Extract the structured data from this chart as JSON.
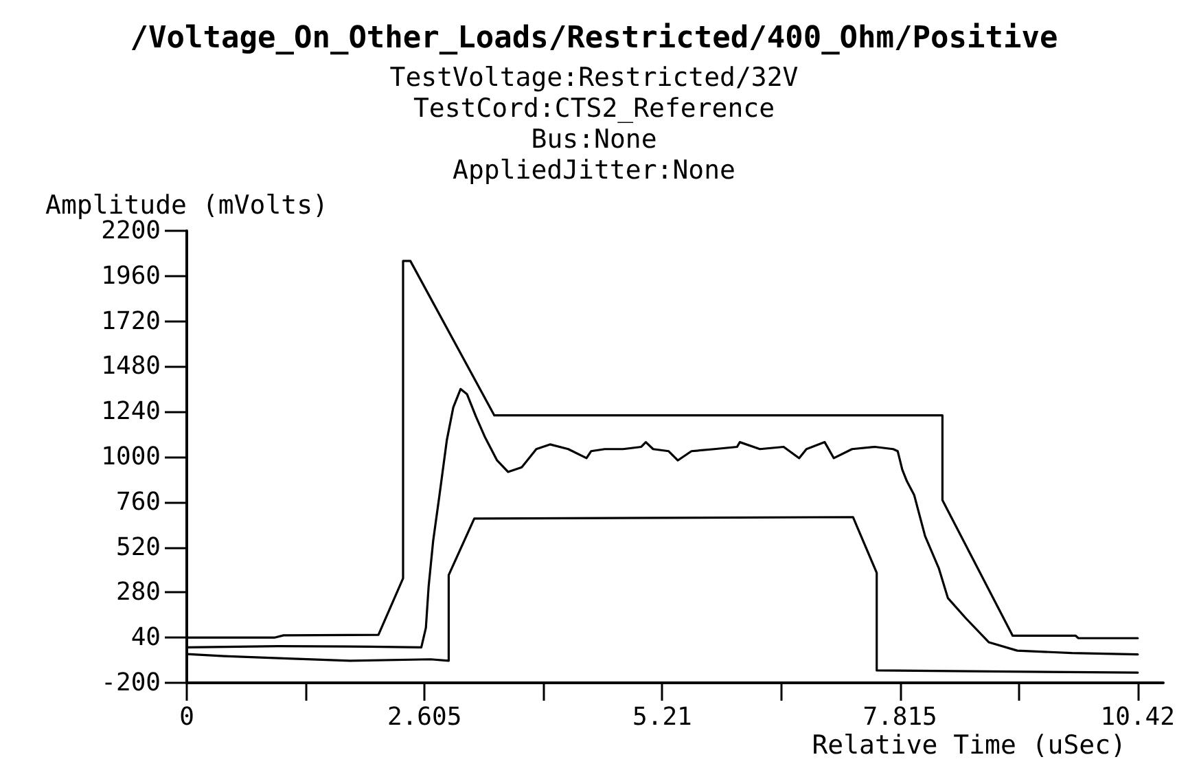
{
  "chart_data": {
    "type": "line",
    "title": "/Voltage_On_Other_Loads/Restricted/400_Ohm/Positive",
    "subtitle": "TestVoltage:Restricted/32V\nTestCord:CTS2_Reference\nBus:None\nAppliedJitter:None",
    "xlabel": "Relative Time (uSec)",
    "ylabel": "Amplitude (mVolts)",
    "series": [
      {
        "color": "#000000",
        "x": [
          0,
          0.96,
          1.06,
          2.1,
          2.37,
          2.37,
          2.45,
          3.37,
          8.28,
          8.28,
          9.05,
          9.74,
          9.77,
          10.42
        ],
        "values": [
          40,
          40,
          52,
          55,
          355,
          2040,
          2040,
          1220,
          1220,
          770,
          50,
          50,
          37,
          37
        ]
      },
      {
        "color": "#000000",
        "x": [
          0,
          1.0,
          2.0,
          2.57,
          2.62,
          2.65,
          2.7,
          2.77,
          2.85,
          2.92,
          3.0,
          3.07,
          3.17,
          3.27,
          3.4,
          3.52,
          3.67,
          3.83,
          3.98,
          4.18,
          4.38,
          4.43,
          4.58,
          4.78,
          4.98,
          5.03,
          5.11,
          5.28,
          5.38,
          5.53,
          5.78,
          6.03,
          6.06,
          6.28,
          6.54,
          6.71,
          6.79,
          6.99,
          7.09,
          7.29,
          7.54,
          7.74,
          7.79,
          7.84,
          7.89,
          7.97,
          8.09,
          8.24,
          8.34,
          8.54,
          8.79,
          9.1,
          9.7,
          10.42
        ],
        "values": [
          -12,
          -5,
          -8,
          -12,
          92,
          311,
          555,
          800,
          1090,
          1262,
          1360,
          1333,
          1212,
          1102,
          981,
          920,
          944,
          1041,
          1066,
          1041,
          993,
          1030,
          1041,
          1041,
          1053,
          1078,
          1041,
          1030,
          981,
          1030,
          1041,
          1053,
          1078,
          1041,
          1053,
          993,
          1041,
          1078,
          993,
          1041,
          1053,
          1041,
          1030,
          932,
          871,
          798,
          579,
          409,
          250,
          141,
          15,
          -29,
          -42,
          -49
        ]
      },
      {
        "color": "#000000",
        "x": [
          0,
          0.41,
          1.11,
          1.79,
          2.67,
          2.87,
          2.87,
          3.15,
          7.3,
          7.56,
          7.56,
          9.0,
          10.42
        ],
        "values": [
          -47,
          -58,
          -71,
          -83,
          -75,
          -83,
          372,
          672,
          680,
          384,
          -134,
          -140,
          -146
        ]
      }
    ],
    "xlim": [
      0,
      10.7
    ],
    "ylim": [
      -200,
      2200
    ],
    "xticks": [
      0,
      {
        "value": 1.3025,
        "label": null
      },
      2.605,
      {
        "value": 3.9075,
        "label": null
      },
      5.21,
      {
        "value": 6.5125,
        "label": null
      },
      7.815,
      {
        "value": 9.1175,
        "label": null
      },
      10.42
    ],
    "yticks": [
      -200,
      40,
      280,
      520,
      760,
      1000,
      1240,
      1480,
      1720,
      1960,
      2200
    ],
    "marker": "none",
    "line_style": "solid"
  }
}
